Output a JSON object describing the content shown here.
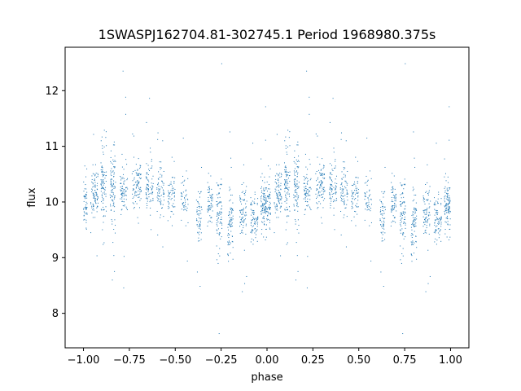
{
  "chart_data": {
    "type": "scatter",
    "title": "1SWASPJ162704.81-302745.1 Period 1968980.375s",
    "xlabel": "phase",
    "ylabel": "flux",
    "xlim": [
      -1.1,
      1.1
    ],
    "ylim": [
      7.38,
      12.78
    ],
    "x_ticks": [
      -1.0,
      -0.75,
      -0.5,
      -0.25,
      0.0,
      0.25,
      0.5,
      0.75,
      1.0
    ],
    "x_tick_labels": [
      "−1.00",
      "−0.75",
      "−0.50",
      "−0.25",
      "0.00",
      "0.25",
      "0.50",
      "0.75",
      "1.00"
    ],
    "y_ticks": [
      8,
      9,
      10,
      11,
      12
    ],
    "y_tick_labels": [
      "8",
      "9",
      "10",
      "11",
      "12"
    ],
    "grid": false,
    "legend": "none",
    "marker_color": "#1f77b4",
    "series": [
      {
        "name": "",
        "description_points": "phase-folded light curve, points mirrored at phase x and x-1 over -1..1",
        "clusters": [
          {
            "x": 0.0,
            "width": 0.04,
            "mean": 9.95,
            "spread": 0.35,
            "n": 90
          },
          {
            "x": 0.06,
            "width": 0.04,
            "mean": 10.15,
            "spread": 0.35,
            "n": 90
          },
          {
            "x": 0.11,
            "width": 0.03,
            "mean": 10.3,
            "spread": 0.45,
            "n": 90
          },
          {
            "x": 0.16,
            "width": 0.03,
            "mean": 10.3,
            "spread": 0.55,
            "n": 90
          },
          {
            "x": 0.22,
            "width": 0.04,
            "mean": 10.2,
            "spread": 0.35,
            "n": 80
          },
          {
            "x": 0.29,
            "width": 0.05,
            "mean": 10.3,
            "spread": 0.4,
            "n": 90
          },
          {
            "x": 0.36,
            "width": 0.04,
            "mean": 10.3,
            "spread": 0.35,
            "n": 80
          },
          {
            "x": 0.42,
            "width": 0.04,
            "mean": 10.2,
            "spread": 0.3,
            "n": 70
          },
          {
            "x": 0.48,
            "width": 0.04,
            "mean": 10.1,
            "spread": 0.3,
            "n": 60
          },
          {
            "x": 0.55,
            "width": 0.04,
            "mean": 10.0,
            "spread": 0.3,
            "n": 50
          },
          {
            "x": 0.63,
            "width": 0.03,
            "mean": 9.75,
            "spread": 0.45,
            "n": 60
          },
          {
            "x": 0.69,
            "width": 0.03,
            "mean": 10.0,
            "spread": 0.35,
            "n": 60
          },
          {
            "x": 0.74,
            "width": 0.03,
            "mean": 9.8,
            "spread": 0.55,
            "n": 80
          },
          {
            "x": 0.8,
            "width": 0.03,
            "mean": 9.6,
            "spread": 0.55,
            "n": 80
          },
          {
            "x": 0.87,
            "width": 0.04,
            "mean": 9.8,
            "spread": 0.4,
            "n": 80
          },
          {
            "x": 0.93,
            "width": 0.04,
            "mean": 9.7,
            "spread": 0.4,
            "n": 80
          },
          {
            "x": 0.98,
            "width": 0.03,
            "mean": 9.95,
            "spread": 0.35,
            "n": 70
          }
        ]
      }
    ]
  }
}
